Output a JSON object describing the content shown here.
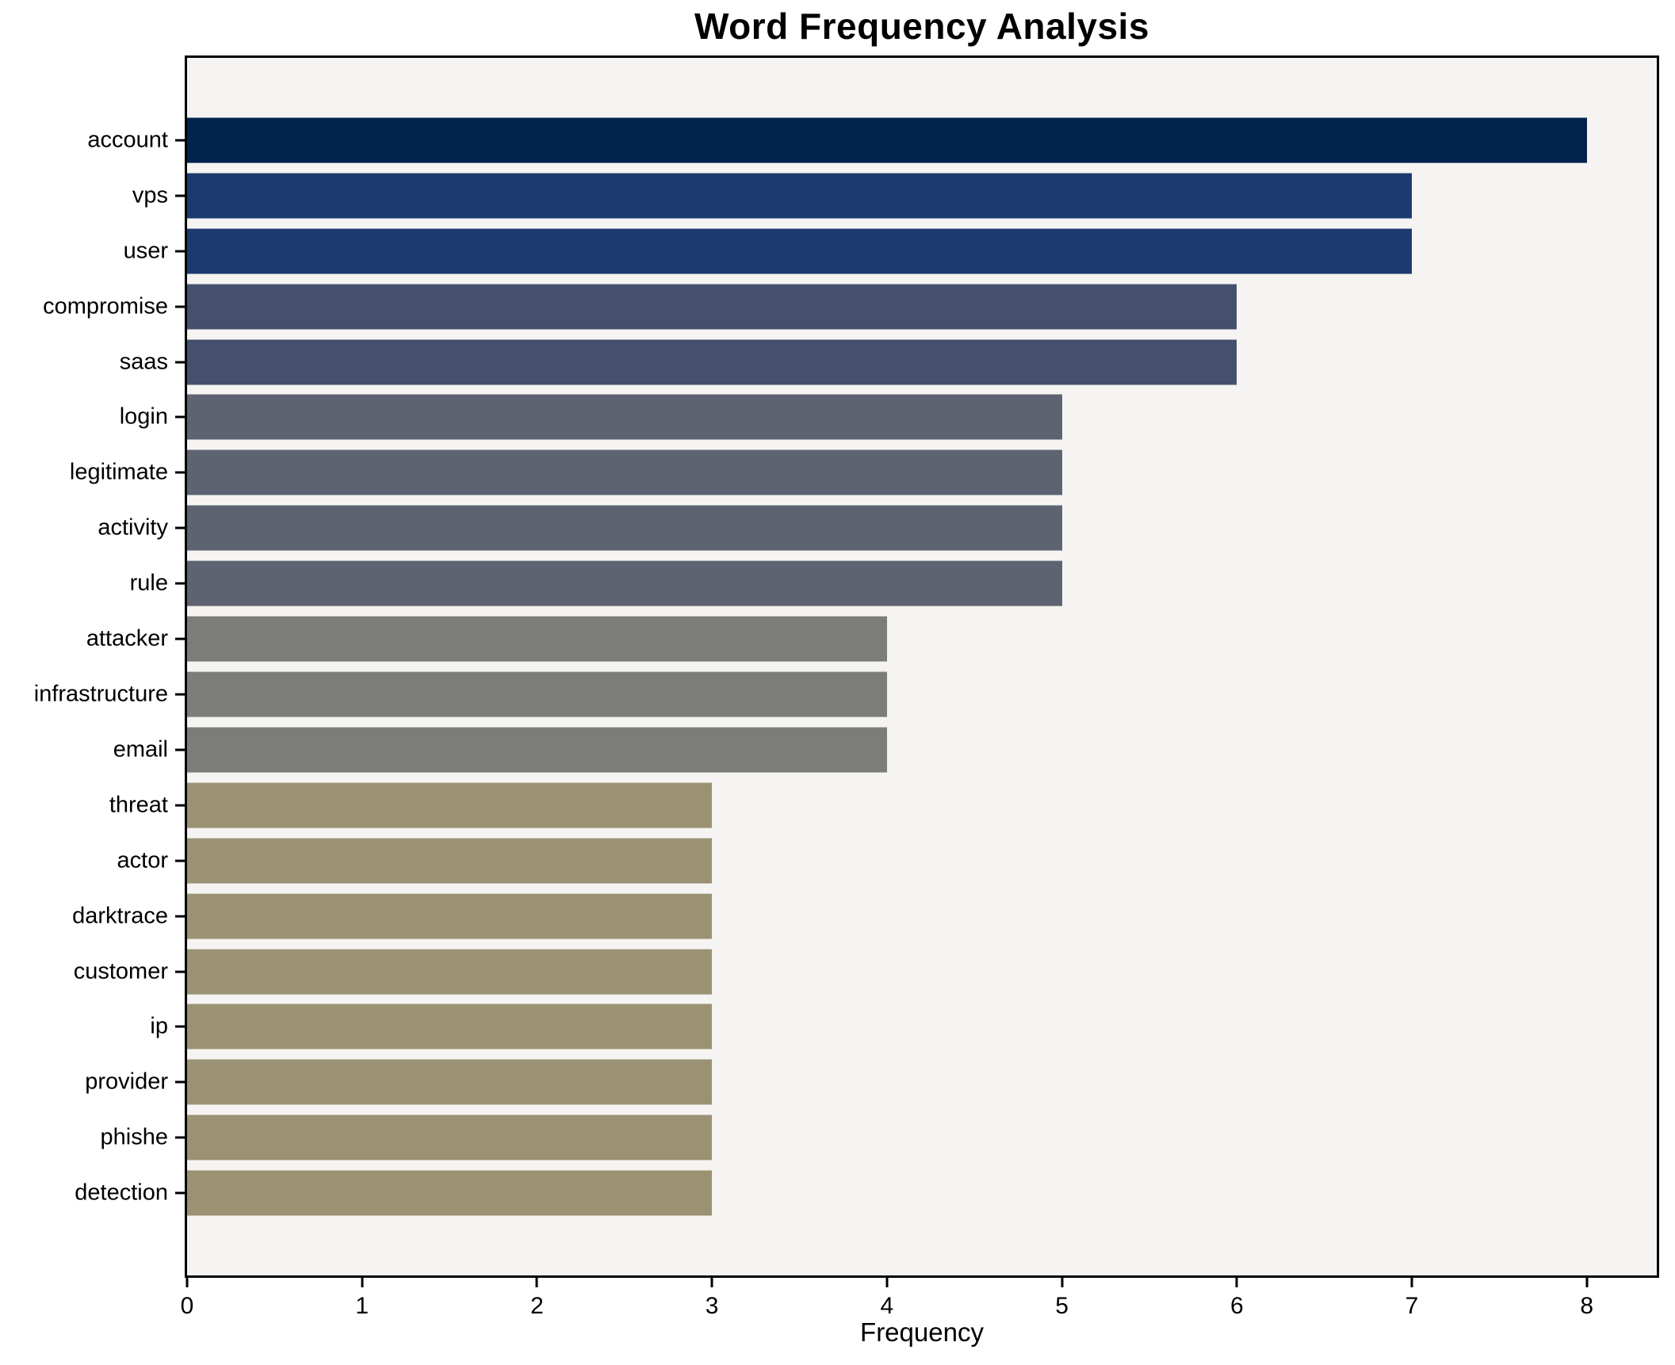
{
  "chart_data": {
    "type": "bar",
    "orientation": "horizontal",
    "title": "Word Frequency Analysis",
    "xlabel": "Frequency",
    "ylabel": "",
    "xlim": [
      0,
      8.4
    ],
    "x_ticks": [
      0,
      1,
      2,
      3,
      4,
      5,
      6,
      7,
      8
    ],
    "grid": false,
    "legend": "none",
    "plot_background": "#f5f4f2",
    "outer_background": "#ffffff",
    "axis_border_color": "#000000",
    "categories": [
      "account",
      "vps",
      "user",
      "compromise",
      "saas",
      "login",
      "legitimate",
      "activity",
      "rule",
      "attacker",
      "infrastructure",
      "email",
      "threat",
      "actor",
      "darktrace",
      "customer",
      "ip",
      "provider",
      "phishe",
      "detection"
    ],
    "values": [
      8,
      7,
      7,
      6,
      6,
      5,
      5,
      5,
      5,
      4,
      4,
      4,
      3,
      3,
      3,
      3,
      3,
      3,
      3,
      3
    ],
    "bar_colors": [
      "#02234d",
      "#1c3a6e",
      "#1c3a6e",
      "#45506f",
      "#45506f",
      "#5d6370",
      "#5d6370",
      "#5d6370",
      "#5d6370",
      "#7c7c78",
      "#7c7c78",
      "#7c7c78",
      "#9a9273",
      "#9a9273",
      "#9a9273",
      "#9a9273",
      "#9a9273",
      "#9a9273",
      "#9a9273",
      "#9a9273"
    ],
    "value_to_color": {
      "8": "#02234d",
      "7": "#1c3a6e",
      "6": "#45506f",
      "5": "#5d6370",
      "4": "#7c7c78",
      "3": "#9a9273"
    }
  }
}
